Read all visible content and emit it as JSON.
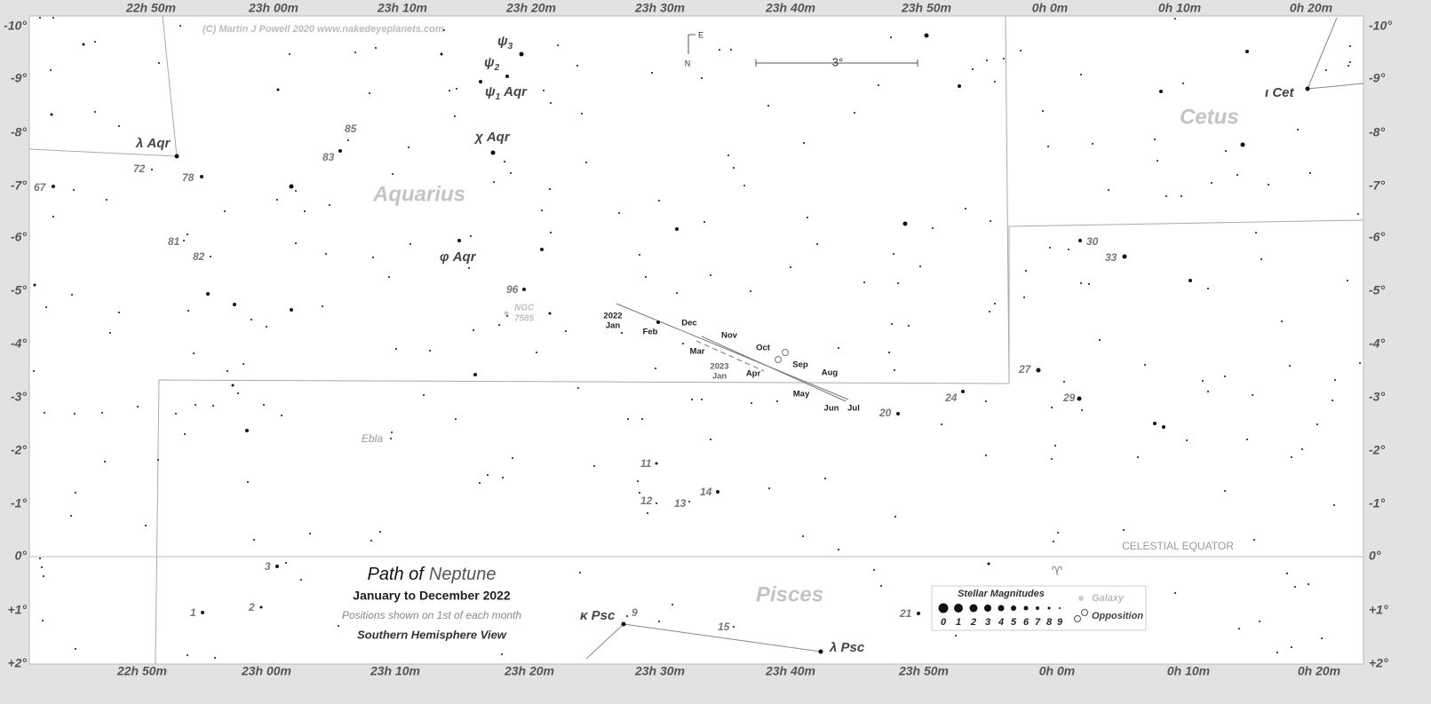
{
  "copyright": "(C) Martin J Powell  2020  www.nakedeyeplanets.com",
  "scale_label": "3°",
  "compass": {
    "east": "E",
    "north": "N"
  },
  "ra_labels_top": [
    "22h 50m",
    "23h 00m",
    "23h 10m",
    "23h 20m",
    "23h 30m",
    "23h 40m",
    "23h 50m",
    "0h 0m",
    "0h 10m",
    "0h 20m"
  ],
  "ra_labels_bottom": [
    "22h 50m",
    "23h 00m",
    "23h 10m",
    "23h 20m",
    "23h 30m",
    "23h 40m",
    "23h 50m",
    "0h 0m",
    "0h 10m",
    "0h 20m"
  ],
  "dec_labels_left": [
    "-10°",
    "-9°",
    "-8°",
    "-7°",
    "-6°",
    "-5°",
    "-4°",
    "-3°",
    "-2°",
    "-1°",
    "0°",
    "+1°",
    "+2°"
  ],
  "dec_labels_right": [
    "-10°",
    "-9°",
    "-8°",
    "-7°",
    "-6°",
    "-5°",
    "-4°",
    "-3°",
    "-2°",
    "-1°",
    "0°",
    "+1°",
    "+2°"
  ],
  "constellations": [
    "Aquarius",
    "Cetus",
    "Pisces"
  ],
  "equator_label": "CELESTIAL EQUATOR",
  "aries_symbol": "♈",
  "greek_labels": [
    {
      "letter": "ψ",
      "sub": "3"
    },
    {
      "letter": "ψ",
      "sub": "2"
    },
    {
      "letter": "ψ",
      "sub": "1",
      "suffix": "Aqr"
    }
  ],
  "star_names": [
    "χ Aqr",
    "φ Aqr",
    "λ Aqr",
    "ι Cet",
    "κ Psc",
    "λ Psc"
  ],
  "flamsteed_numbers": [
    "85",
    "83",
    "72",
    "78",
    "67",
    "81",
    "82",
    "96",
    "30",
    "33",
    "27",
    "29",
    "24",
    "20",
    "11",
    "12",
    "13",
    "14",
    "15",
    "9",
    "3",
    "2",
    "1",
    "21"
  ],
  "deep_sky": {
    "ngc": [
      "NGC",
      "7585"
    ],
    "ebla": "Ebla"
  },
  "path_labels": [
    "2022",
    "Jan",
    "Feb",
    "Mar",
    "Dec",
    "Nov",
    "Oct",
    "Sep",
    "Aug",
    "2023",
    "Jan",
    "Apr",
    "May",
    "Jun",
    "Jul"
  ],
  "title": {
    "prefix": "Path of",
    "planet": "Neptune"
  },
  "subtitle": "January to December 2022",
  "note": "Positions shown on 1st of each month",
  "view": "Southern Hemisphere View",
  "legend": {
    "title": "Stellar Magnitudes",
    "magnitudes": [
      "0",
      "1",
      "2",
      "3",
      "4",
      "5",
      "6",
      "7",
      "8",
      "9"
    ],
    "galaxy": "Galaxy",
    "opposition": "Opposition"
  }
}
